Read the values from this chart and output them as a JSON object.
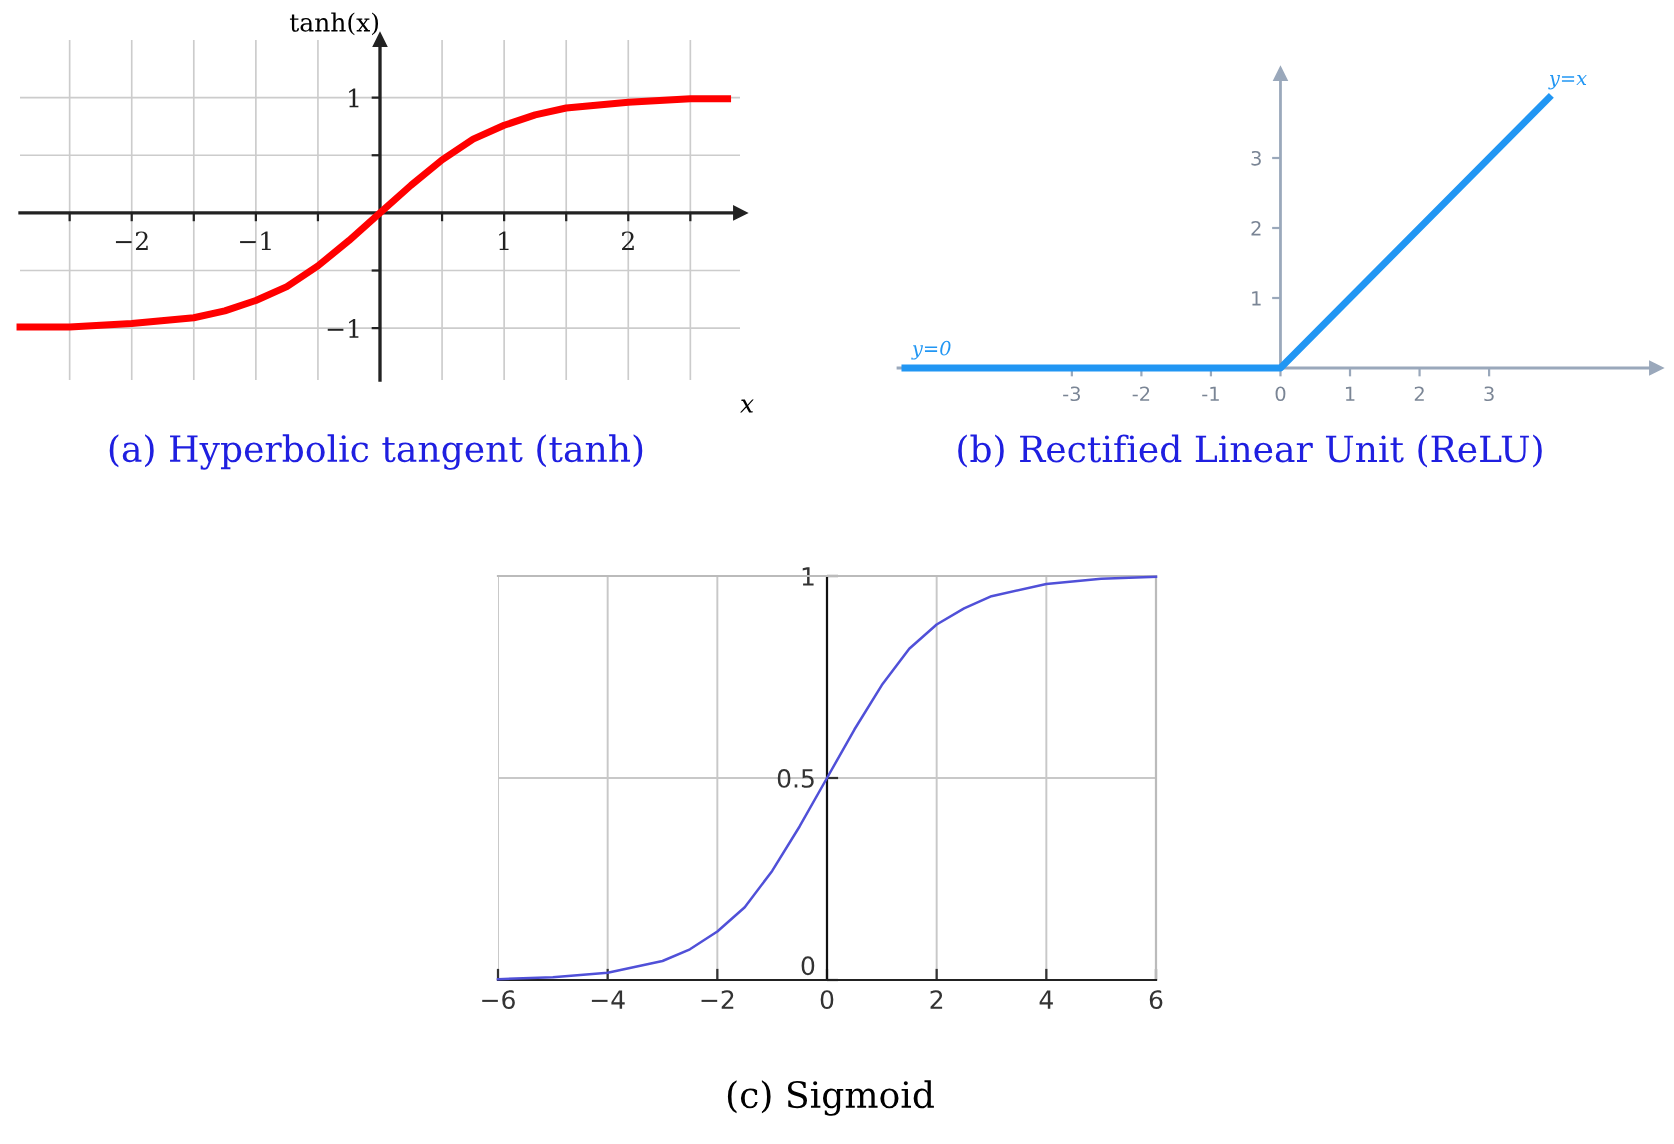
{
  "chart_data": [
    {
      "type": "line",
      "title": "(a) Hyperbolic tangent (tanh)",
      "xlabel": "x",
      "ylabel": "tanh(x)",
      "x": [
        -2.9,
        -2.5,
        -2,
        -1.5,
        -1.25,
        -1,
        -0.75,
        -0.5,
        -0.25,
        0,
        0.25,
        0.5,
        0.75,
        1,
        1.25,
        1.5,
        2,
        2.5,
        2.8
      ],
      "series": [
        {
          "color": "#ff0000",
          "values": [
            -0.99,
            -0.99,
            -0.96,
            -0.91,
            -0.85,
            -0.76,
            -0.64,
            -0.46,
            -0.24,
            0,
            0.24,
            0.46,
            0.64,
            0.76,
            0.85,
            0.91,
            0.96,
            0.99,
            0.99
          ]
        }
      ],
      "xlim": [
        -2.9,
        2.9
      ],
      "ylim": [
        -1.45,
        1.5
      ],
      "xticks": [
        {
          "value": -2.5,
          "label": null
        },
        {
          "value": -2,
          "label": "−2"
        },
        {
          "value": -1.5,
          "label": null
        },
        {
          "value": -1,
          "label": "−1"
        },
        {
          "value": -0.5,
          "label": null
        },
        {
          "value": 0.5,
          "label": null
        },
        1,
        {
          "value": 1.5,
          "label": null
        },
        2,
        {
          "value": 2.5,
          "label": null
        }
      ],
      "yticks": [
        {
          "value": -1,
          "label": "−1"
        },
        {
          "value": -0.5,
          "label": null
        },
        {
          "value": 0.5,
          "label": null
        },
        1
      ],
      "grid": true,
      "line_style": "solid",
      "marker": "none"
    },
    {
      "type": "line",
      "title": "(b) Rectified Linear Unit (ReLU)",
      "x": [
        -5.4,
        0,
        3.86
      ],
      "series": [
        {
          "color": "#2196f3",
          "values": [
            0,
            0,
            3.86
          ]
        }
      ],
      "annotations": [
        {
          "text": "y=0",
          "x": -5.3,
          "y": 0
        },
        {
          "text": "y=x",
          "x": 3.86,
          "y": 3.86
        }
      ],
      "xlim": [
        -5.5,
        5.4
      ],
      "ylim": [
        0,
        4.2
      ],
      "xticks": [
        -3,
        -2,
        -1,
        0,
        1,
        2,
        3
      ],
      "yticks": [
        1,
        2,
        3
      ],
      "line_style": "solid",
      "marker": "none"
    },
    {
      "type": "line",
      "title": "(c) Sigmoid",
      "x": [
        -6,
        -5,
        -4,
        -3,
        -2.5,
        -2,
        -1.5,
        -1,
        -0.5,
        0,
        0.5,
        1,
        1.5,
        2,
        2.5,
        3,
        4,
        5,
        6
      ],
      "series": [
        {
          "color": "#5050d8",
          "values": [
            0.002,
            0.007,
            0.018,
            0.047,
            0.076,
            0.12,
            0.18,
            0.27,
            0.38,
            0.5,
            0.62,
            0.73,
            0.82,
            0.88,
            0.92,
            0.95,
            0.98,
            0.993,
            0.998
          ]
        }
      ],
      "xlim": [
        -6,
        6
      ],
      "ylim": [
        0,
        1
      ],
      "xticks": [
        {
          "value": -6,
          "label": "−6"
        },
        {
          "value": -4,
          "label": "−4"
        },
        {
          "value": -2,
          "label": "−2"
        },
        0,
        2,
        4,
        6
      ],
      "yticks": [
        0,
        0.5,
        1
      ],
      "grid": true,
      "line_style": "solid",
      "marker": "none"
    }
  ]
}
